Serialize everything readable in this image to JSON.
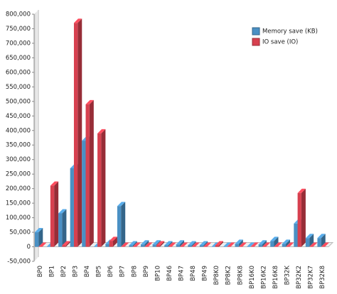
{
  "chart_data": {
    "type": "bar3d",
    "categories": [
      "BP0",
      "BP1",
      "BP2",
      "BP3",
      "BP4",
      "BP5",
      "BP6",
      "BP7",
      "BP8",
      "BP9",
      "BP10",
      "BP46",
      "BP47",
      "BP48",
      "BP49",
      "BP8K0",
      "BP8K2",
      "BP8K8",
      "BP16K0",
      "BP16K2",
      "BP16K8",
      "BP32K",
      "BP32K2",
      "BP32K7",
      "BP32K8"
    ],
    "series": [
      {
        "name": "Memory save (KB)",
        "color": "#4a90c4",
        "values": [
          50000,
          0,
          115000,
          270000,
          365000,
          0,
          10000,
          140000,
          5000,
          8000,
          8000,
          5000,
          8000,
          5000,
          5000,
          0,
          0,
          10000,
          0,
          8000,
          20000,
          10000,
          80000,
          30000,
          30000
        ]
      },
      {
        "name": "IO save (IO)",
        "color": "#d7404f",
        "values": [
          0,
          210000,
          5000,
          770000,
          490000,
          390000,
          20000,
          0,
          0,
          0,
          5000,
          0,
          0,
          0,
          0,
          5000,
          0,
          0,
          0,
          0,
          0,
          0,
          185000,
          0,
          0
        ]
      }
    ],
    "ylim": [
      -50000,
      800000
    ],
    "yticks": [
      {
        "value": -50000,
        "label": "-50,000"
      },
      0,
      {
        "value": 50000,
        "label": "50,000"
      },
      {
        "value": 100000,
        "label": "100,000"
      },
      {
        "value": 150000,
        "label": "150,000"
      },
      {
        "value": 200000,
        "label": "200,000"
      },
      {
        "value": 250000,
        "label": "250,000"
      },
      {
        "value": 300000,
        "label": "300,000"
      },
      {
        "value": 350000,
        "label": "350,000"
      },
      {
        "value": 400000,
        "label": "400,000"
      },
      {
        "value": 450000,
        "label": "450,000"
      },
      {
        "value": 500000,
        "label": "500,000"
      },
      {
        "value": 550000,
        "label": "550,000"
      },
      {
        "value": 600000,
        "label": "600,000"
      },
      {
        "value": 650000,
        "label": "650,000"
      },
      {
        "value": 700000,
        "label": "700,000"
      },
      {
        "value": 750000,
        "label": "750,000"
      },
      {
        "value": 800000,
        "label": "800,000"
      }
    ],
    "legend": "top-right"
  }
}
